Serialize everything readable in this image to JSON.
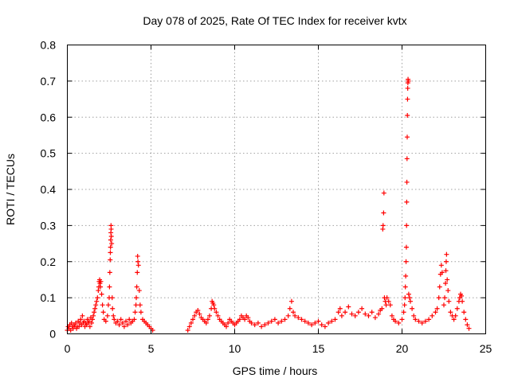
{
  "chart_data": {
    "type": "scatter",
    "title": "Day 078 of 2025, Rate Of TEC Index for receiver kvtx",
    "xlabel": "GPS time / hours",
    "ylabel": "ROTI / TECUs",
    "xlim": [
      0,
      25
    ],
    "ylim": [
      0,
      0.8
    ],
    "xticks": [
      0,
      5,
      10,
      15,
      20,
      25
    ],
    "yticks": [
      0,
      0.1,
      0.2,
      0.3,
      0.4,
      0.5,
      0.6,
      0.7,
      0.8
    ],
    "grid": true,
    "marker": "+",
    "color": "#ff0000",
    "series": [
      {
        "name": "ROTI",
        "points": [
          [
            0.0,
            0.01
          ],
          [
            0.05,
            0.02
          ],
          [
            0.1,
            0.015
          ],
          [
            0.15,
            0.025
          ],
          [
            0.2,
            0.01
          ],
          [
            0.25,
            0.03
          ],
          [
            0.3,
            0.02
          ],
          [
            0.35,
            0.015
          ],
          [
            0.4,
            0.025
          ],
          [
            0.45,
            0.02
          ],
          [
            0.5,
            0.03
          ],
          [
            0.55,
            0.015
          ],
          [
            0.6,
            0.02
          ],
          [
            0.65,
            0.035
          ],
          [
            0.7,
            0.02
          ],
          [
            0.75,
            0.03
          ],
          [
            0.8,
            0.04
          ],
          [
            0.85,
            0.025
          ],
          [
            0.9,
            0.05
          ],
          [
            0.95,
            0.03
          ],
          [
            1.0,
            0.035
          ],
          [
            1.05,
            0.02
          ],
          [
            1.1,
            0.03
          ],
          [
            1.15,
            0.025
          ],
          [
            1.2,
            0.04
          ],
          [
            1.25,
            0.03
          ],
          [
            1.3,
            0.035
          ],
          [
            1.35,
            0.02
          ],
          [
            1.4,
            0.045
          ],
          [
            1.45,
            0.03
          ],
          [
            1.5,
            0.04
          ],
          [
            1.55,
            0.05
          ],
          [
            1.6,
            0.06
          ],
          [
            1.65,
            0.07
          ],
          [
            1.7,
            0.08
          ],
          [
            1.75,
            0.09
          ],
          [
            1.8,
            0.1
          ],
          [
            1.85,
            0.12
          ],
          [
            1.88,
            0.13
          ],
          [
            1.9,
            0.145
          ],
          [
            1.93,
            0.15
          ],
          [
            1.95,
            0.14
          ],
          [
            1.98,
            0.13
          ],
          [
            2.0,
            0.145
          ],
          [
            2.05,
            0.11
          ],
          [
            2.1,
            0.08
          ],
          [
            2.15,
            0.06
          ],
          [
            2.2,
            0.04
          ],
          [
            2.3,
            0.035
          ],
          [
            2.4,
            0.05
          ],
          [
            2.45,
            0.08
          ],
          [
            2.5,
            0.1
          ],
          [
            2.52,
            0.13
          ],
          [
            2.54,
            0.17
          ],
          [
            2.56,
            0.205
          ],
          [
            2.57,
            0.225
          ],
          [
            2.58,
            0.24
          ],
          [
            2.59,
            0.26
          ],
          [
            2.6,
            0.28
          ],
          [
            2.61,
            0.3
          ],
          [
            2.62,
            0.29
          ],
          [
            2.63,
            0.27
          ],
          [
            2.65,
            0.25
          ],
          [
            2.68,
            0.1
          ],
          [
            2.7,
            0.07
          ],
          [
            2.75,
            0.05
          ],
          [
            2.8,
            0.04
          ],
          [
            2.9,
            0.03
          ],
          [
            3.0,
            0.035
          ],
          [
            3.1,
            0.025
          ],
          [
            3.2,
            0.04
          ],
          [
            3.3,
            0.03
          ],
          [
            3.4,
            0.02
          ],
          [
            3.5,
            0.035
          ],
          [
            3.6,
            0.025
          ],
          [
            3.7,
            0.04
          ],
          [
            3.8,
            0.03
          ],
          [
            3.9,
            0.035
          ],
          [
            4.0,
            0.04
          ],
          [
            4.05,
            0.06
          ],
          [
            4.1,
            0.08
          ],
          [
            4.12,
            0.1
          ],
          [
            4.15,
            0.13
          ],
          [
            4.18,
            0.17
          ],
          [
            4.2,
            0.215
          ],
          [
            4.22,
            0.2
          ],
          [
            4.25,
            0.19
          ],
          [
            4.3,
            0.12
          ],
          [
            4.35,
            0.08
          ],
          [
            4.4,
            0.06
          ],
          [
            4.5,
            0.04
          ],
          [
            4.6,
            0.035
          ],
          [
            4.7,
            0.03
          ],
          [
            4.8,
            0.025
          ],
          [
            4.9,
            0.02
          ],
          [
            5.0,
            0.015
          ],
          [
            5.1,
            0.01
          ],
          [
            7.2,
            0.01
          ],
          [
            7.3,
            0.02
          ],
          [
            7.4,
            0.03
          ],
          [
            7.5,
            0.04
          ],
          [
            7.6,
            0.05
          ],
          [
            7.7,
            0.06
          ],
          [
            7.8,
            0.065
          ],
          [
            7.9,
            0.055
          ],
          [
            8.0,
            0.045
          ],
          [
            8.1,
            0.04
          ],
          [
            8.2,
            0.035
          ],
          [
            8.3,
            0.03
          ],
          [
            8.4,
            0.04
          ],
          [
            8.5,
            0.05
          ],
          [
            8.6,
            0.07
          ],
          [
            8.65,
            0.09
          ],
          [
            8.7,
            0.085
          ],
          [
            8.75,
            0.08
          ],
          [
            8.8,
            0.07
          ],
          [
            8.9,
            0.06
          ],
          [
            9.0,
            0.05
          ],
          [
            9.1,
            0.04
          ],
          [
            9.2,
            0.035
          ],
          [
            9.3,
            0.03
          ],
          [
            9.4,
            0.025
          ],
          [
            9.5,
            0.02
          ],
          [
            9.6,
            0.03
          ],
          [
            9.7,
            0.04
          ],
          [
            9.8,
            0.035
          ],
          [
            9.9,
            0.03
          ],
          [
            10.0,
            0.025
          ],
          [
            10.1,
            0.03
          ],
          [
            10.2,
            0.035
          ],
          [
            10.3,
            0.04
          ],
          [
            10.4,
            0.05
          ],
          [
            10.5,
            0.045
          ],
          [
            10.6,
            0.04
          ],
          [
            10.7,
            0.05
          ],
          [
            10.8,
            0.045
          ],
          [
            10.9,
            0.035
          ],
          [
            11.0,
            0.03
          ],
          [
            11.2,
            0.025
          ],
          [
            11.4,
            0.03
          ],
          [
            11.6,
            0.02
          ],
          [
            11.8,
            0.025
          ],
          [
            12.0,
            0.03
          ],
          [
            12.2,
            0.035
          ],
          [
            12.4,
            0.04
          ],
          [
            12.6,
            0.03
          ],
          [
            12.8,
            0.035
          ],
          [
            13.0,
            0.04
          ],
          [
            13.2,
            0.05
          ],
          [
            13.3,
            0.07
          ],
          [
            13.4,
            0.09
          ],
          [
            13.5,
            0.06
          ],
          [
            13.6,
            0.05
          ],
          [
            13.8,
            0.045
          ],
          [
            14.0,
            0.04
          ],
          [
            14.2,
            0.035
          ],
          [
            14.4,
            0.03
          ],
          [
            14.6,
            0.025
          ],
          [
            14.8,
            0.03
          ],
          [
            15.0,
            0.035
          ],
          [
            15.2,
            0.025
          ],
          [
            15.4,
            0.02
          ],
          [
            15.6,
            0.03
          ],
          [
            15.8,
            0.035
          ],
          [
            16.0,
            0.04
          ],
          [
            16.2,
            0.06
          ],
          [
            16.3,
            0.07
          ],
          [
            16.4,
            0.05
          ],
          [
            16.6,
            0.06
          ],
          [
            16.8,
            0.075
          ],
          [
            17.0,
            0.055
          ],
          [
            17.2,
            0.05
          ],
          [
            17.4,
            0.06
          ],
          [
            17.6,
            0.07
          ],
          [
            17.8,
            0.055
          ],
          [
            18.0,
            0.05
          ],
          [
            18.2,
            0.06
          ],
          [
            18.4,
            0.045
          ],
          [
            18.6,
            0.055
          ],
          [
            18.7,
            0.065
          ],
          [
            18.8,
            0.07
          ],
          [
            18.85,
            0.29
          ],
          [
            18.87,
            0.3
          ],
          [
            18.9,
            0.335
          ],
          [
            18.92,
            0.39
          ],
          [
            18.95,
            0.1
          ],
          [
            19.0,
            0.09
          ],
          [
            19.05,
            0.08
          ],
          [
            19.1,
            0.1
          ],
          [
            19.2,
            0.09
          ],
          [
            19.3,
            0.08
          ],
          [
            19.4,
            0.05
          ],
          [
            19.5,
            0.04
          ],
          [
            19.6,
            0.035
          ],
          [
            19.8,
            0.03
          ],
          [
            20.0,
            0.04
          ],
          [
            20.1,
            0.06
          ],
          [
            20.15,
            0.08
          ],
          [
            20.18,
            0.1
          ],
          [
            20.2,
            0.13
          ],
          [
            20.22,
            0.16
          ],
          [
            20.24,
            0.2
          ],
          [
            20.26,
            0.24
          ],
          [
            20.27,
            0.3
          ],
          [
            20.28,
            0.365
          ],
          [
            20.29,
            0.42
          ],
          [
            20.3,
            0.485
          ],
          [
            20.31,
            0.545
          ],
          [
            20.32,
            0.605
          ],
          [
            20.33,
            0.65
          ],
          [
            20.34,
            0.68
          ],
          [
            20.35,
            0.695
          ],
          [
            20.36,
            0.705
          ],
          [
            20.38,
            0.7
          ],
          [
            20.4,
            0.11
          ],
          [
            20.45,
            0.1
          ],
          [
            20.5,
            0.09
          ],
          [
            20.6,
            0.07
          ],
          [
            20.7,
            0.05
          ],
          [
            20.8,
            0.04
          ],
          [
            21.0,
            0.035
          ],
          [
            21.2,
            0.03
          ],
          [
            21.4,
            0.035
          ],
          [
            21.6,
            0.04
          ],
          [
            21.8,
            0.05
          ],
          [
            22.0,
            0.06
          ],
          [
            22.1,
            0.07
          ],
          [
            22.2,
            0.1
          ],
          [
            22.25,
            0.13
          ],
          [
            22.3,
            0.165
          ],
          [
            22.35,
            0.19
          ],
          [
            22.4,
            0.17
          ],
          [
            22.5,
            0.08
          ],
          [
            22.55,
            0.1
          ],
          [
            22.6,
            0.14
          ],
          [
            22.62,
            0.175
          ],
          [
            22.64,
            0.2
          ],
          [
            22.66,
            0.22
          ],
          [
            22.7,
            0.15
          ],
          [
            22.75,
            0.12
          ],
          [
            22.8,
            0.09
          ],
          [
            22.9,
            0.06
          ],
          [
            23.0,
            0.05
          ],
          [
            23.1,
            0.04
          ],
          [
            23.2,
            0.05
          ],
          [
            23.3,
            0.07
          ],
          [
            23.4,
            0.09
          ],
          [
            23.45,
            0.1
          ],
          [
            23.5,
            0.11
          ],
          [
            23.55,
            0.105
          ],
          [
            23.6,
            0.09
          ],
          [
            23.7,
            0.06
          ],
          [
            23.8,
            0.04
          ],
          [
            23.9,
            0.025
          ],
          [
            24.0,
            0.015
          ]
        ]
      }
    ]
  }
}
